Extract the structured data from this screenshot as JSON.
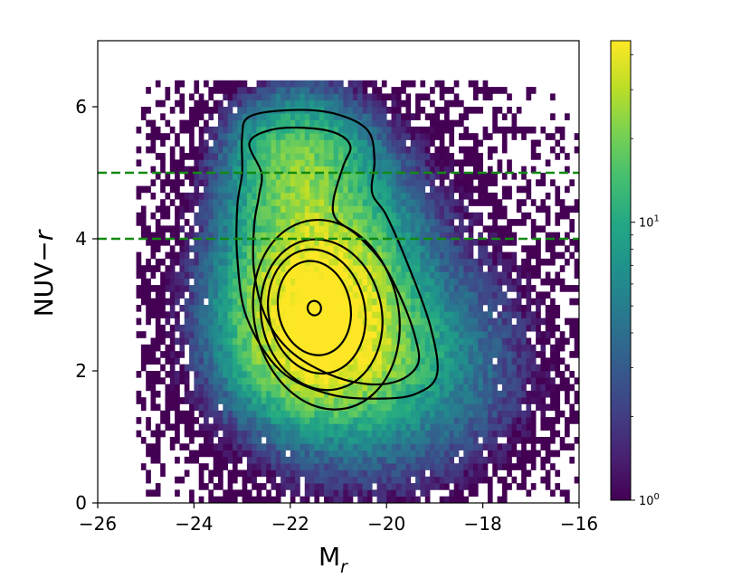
{
  "chart_data": {
    "type": "heatmap",
    "subtype": "2d-histogram-with-density-contours",
    "title": "",
    "xlabel": {
      "main": "M",
      "sub": "r"
    },
    "ylabel": {
      "main": "NUV−",
      "italic": "r"
    },
    "xlim": [
      -26,
      -16
    ],
    "ylim": [
      0,
      7
    ],
    "x_ticks": [
      -26,
      -24,
      -22,
      -20,
      -18,
      -16
    ],
    "x_tick_labels": [
      "−26",
      "−24",
      "−22",
      "−20",
      "−18",
      "−16"
    ],
    "y_ticks": [
      0,
      2,
      4,
      6
    ],
    "y_tick_labels": [
      "0",
      "2",
      "4",
      "6"
    ],
    "colormap": "viridis",
    "colorbar": {
      "scale": "log",
      "range": [
        1,
        45
      ],
      "tick_labels": [
        {
          "value": 1,
          "base": "10",
          "exp": "0"
        },
        {
          "value": 10,
          "base": "10",
          "exp": "1"
        }
      ]
    },
    "histogram": {
      "bin_width_x": 0.1,
      "bin_height_y": 0.1,
      "peak_count": 45,
      "peak_location": {
        "x": -21.5,
        "y": 2.95
      },
      "extent": {
        "x": [
          -25.2,
          -16.0
        ],
        "y": [
          0.0,
          6.4
        ]
      }
    },
    "contours": [
      {
        "level": 1,
        "center_x": -21.5,
        "center_y": 2.95,
        "rx": 0.14,
        "ry": 0.11
      },
      {
        "level": 2,
        "center_x": -21.5,
        "center_y": 2.95,
        "rx": 0.75,
        "ry": 0.72
      },
      {
        "level": 3,
        "center_x": -21.45,
        "center_y": 2.9,
        "rx": 1.0,
        "ry": 0.95
      },
      {
        "level": 4,
        "center_x": -21.35,
        "center_y": 2.85,
        "rx": 1.25,
        "ry": 1.15
      },
      {
        "level": 5,
        "center_x": -21.25,
        "center_y": 2.85,
        "rx": 1.5,
        "ry": 1.45
      },
      {
        "level": 6,
        "shape": "bimodal",
        "outline": [
          [
            -22.85,
            5.45
          ],
          [
            -22.4,
            5.65
          ],
          [
            -21.7,
            5.68
          ],
          [
            -21.05,
            5.6
          ],
          [
            -20.75,
            5.4
          ],
          [
            -20.9,
            5.1
          ],
          [
            -21.1,
            4.6
          ],
          [
            -21.05,
            4.3
          ],
          [
            -20.6,
            4.05
          ],
          [
            -20.1,
            3.65
          ],
          [
            -19.7,
            3.1
          ],
          [
            -19.4,
            2.5
          ],
          [
            -19.35,
            2.1
          ],
          [
            -19.75,
            1.85
          ],
          [
            -20.4,
            1.8
          ],
          [
            -21.2,
            1.95
          ],
          [
            -22.0,
            2.3
          ],
          [
            -22.5,
            2.8
          ],
          [
            -22.75,
            3.5
          ],
          [
            -22.75,
            4.2
          ],
          [
            -22.65,
            4.65
          ],
          [
            -22.6,
            5.0
          ],
          [
            -22.85,
            5.45
          ]
        ]
      },
      {
        "level": 7,
        "shape": "bimodal",
        "outline": [
          [
            -23.0,
            5.55
          ],
          [
            -22.85,
            5.85
          ],
          [
            -22.0,
            5.95
          ],
          [
            -21.1,
            5.9
          ],
          [
            -20.4,
            5.65
          ],
          [
            -20.25,
            5.2
          ],
          [
            -20.3,
            4.7
          ],
          [
            -20.0,
            4.35
          ],
          [
            -19.55,
            3.6
          ],
          [
            -19.1,
            2.7
          ],
          [
            -18.95,
            1.95
          ],
          [
            -19.4,
            1.65
          ],
          [
            -20.2,
            1.58
          ],
          [
            -21.2,
            1.65
          ],
          [
            -22.2,
            2.0
          ],
          [
            -22.9,
            2.8
          ],
          [
            -23.1,
            3.7
          ],
          [
            -23.1,
            4.5
          ],
          [
            -23.0,
            5.0
          ],
          [
            -23.0,
            5.55
          ]
        ]
      }
    ],
    "reference_lines": [
      {
        "orientation": "horizontal",
        "y": 5,
        "style": "dashed",
        "color": "#128a12"
      },
      {
        "orientation": "horizontal",
        "y": 4,
        "style": "dashed",
        "color": "#128a12"
      }
    ],
    "colors": {
      "contour": "#000000",
      "reference_line": "#128a12"
    }
  }
}
